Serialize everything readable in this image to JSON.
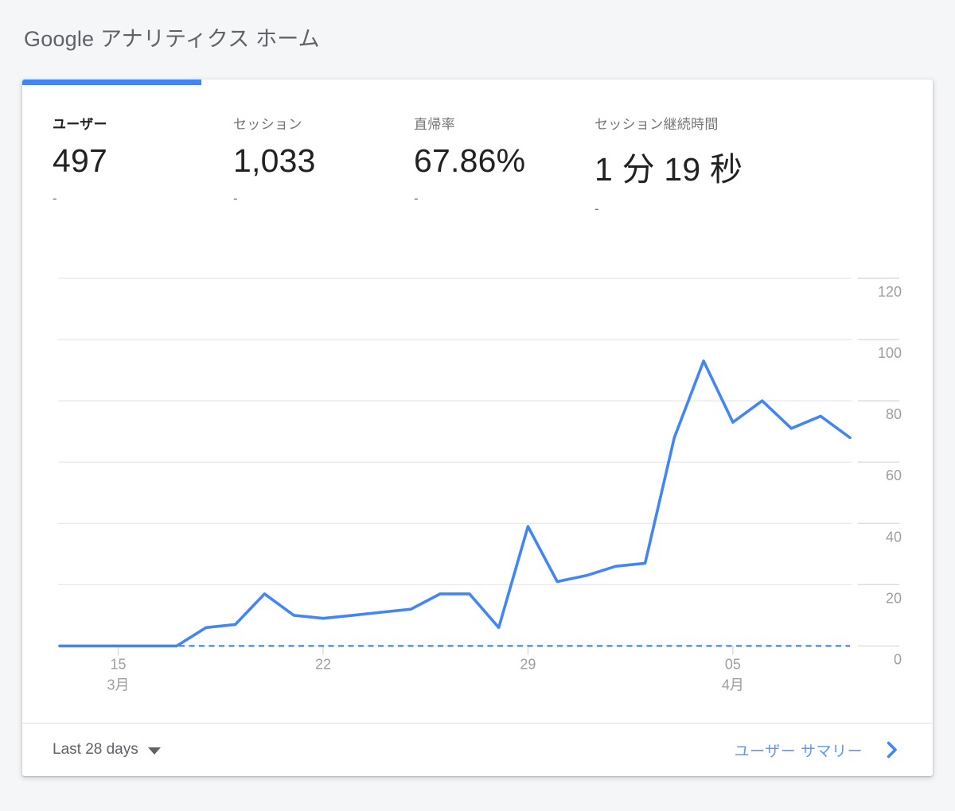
{
  "page": {
    "title": "Google アナリティクス ホーム"
  },
  "metrics": {
    "items": [
      {
        "label": "ユーザー",
        "value": "497",
        "delta": "-",
        "active": true
      },
      {
        "label": "セッション",
        "value": "1,033",
        "delta": "-",
        "active": false
      },
      {
        "label": "直帰率",
        "value": "67.86%",
        "delta": "-",
        "active": false
      },
      {
        "label": "セッション継続時間",
        "value": "1 分 19 秒",
        "delta": "-",
        "active": false
      }
    ]
  },
  "chart_data": {
    "type": "line",
    "series": [
      {
        "name": "ユーザー",
        "values": [
          0,
          0,
          0,
          0,
          0,
          6,
          7,
          17,
          10,
          9,
          10,
          11,
          12,
          17,
          17,
          6,
          39,
          21,
          23,
          26,
          27,
          68,
          93,
          73,
          80,
          71,
          75,
          68
        ]
      }
    ],
    "x_ticks": [
      {
        "label": "15",
        "sublabel": "3月",
        "index": 2
      },
      {
        "label": "22",
        "sublabel": "",
        "index": 9
      },
      {
        "label": "29",
        "sublabel": "",
        "index": 16
      },
      {
        "label": "05",
        "sublabel": "4月",
        "index": 23
      }
    ],
    "y_ticks": [
      120,
      100,
      80,
      60,
      40,
      20,
      0
    ],
    "ylim": [
      0,
      120
    ],
    "grid": "horizontal",
    "y_axis_position": "right",
    "baseline_dashed_at": 0,
    "line_color": "#4285f4"
  },
  "footer": {
    "date_range_label": "Last 28 days",
    "summary_link_label": "ユーザー サマリー"
  },
  "colors": {
    "accent": "#4285f4",
    "link": "#5e97f6",
    "text_primary": "#212121",
    "text_secondary": "#757575",
    "grid": "#e8eaed",
    "axis_label": "#9e9e9e"
  }
}
